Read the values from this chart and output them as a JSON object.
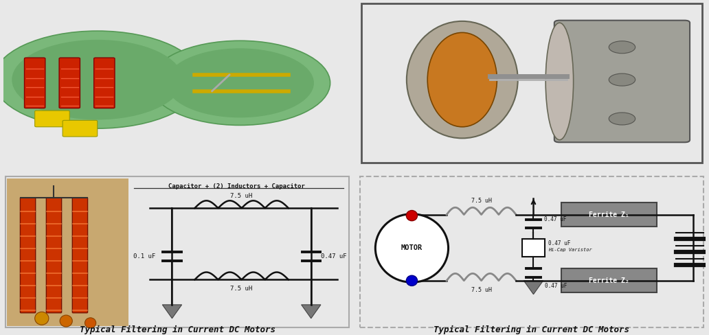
{
  "bg_color": "#e8e8e8",
  "top_left_bg": "#d9b0b0",
  "top_right_bg": "#c8c0c0",
  "bottom_left_bg": "#f5f0e8",
  "bottom_right_bg": "#f0ede8",
  "bottom_left_caption": "Typical Filtering in Current DC Motors",
  "bottom_right_caption": "Typical Filtering in Current DC Motors",
  "circuit_title": "Capacitor + (2) Inductors + Capacitor",
  "inductor_label_top": "7.5 uH",
  "inductor_label_bot": "7.5 uH",
  "cap_label_left": "0.1 uF",
  "cap_label_right": "0.47 uF",
  "right_inductor_top": "7.5 uH",
  "right_inductor_bot": "7.5 uH",
  "right_cap_top": "0.47 uF",
  "right_cap_bot": "0.47 uF",
  "right_cap_mid_line1": "0.47 uF",
  "right_cap_mid_line2": "Hi-Cap Varistor",
  "ferrite_top": "Ferrite Z₁",
  "ferrite_bot": "Ferrite Z₂",
  "motor_label": "MOTOR",
  "wire_color": "#111111",
  "coil_color_photo": "#cc4400",
  "cap_color_photo": "#cc8800",
  "photo_bg": "#c8a870",
  "ground_color": "#777777",
  "ferrite_color": "#888888"
}
